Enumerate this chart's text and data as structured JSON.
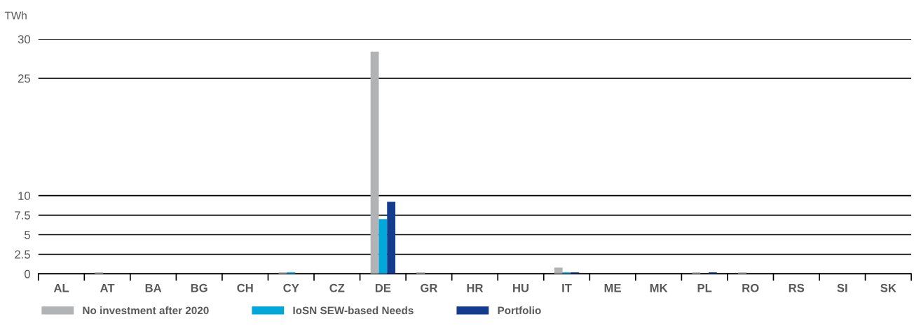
{
  "chart_data": {
    "type": "bar",
    "ylabel": "TWh",
    "categories": [
      "AL",
      "AT",
      "BA",
      "BG",
      "CH",
      "CY",
      "CZ",
      "DE",
      "GR",
      "HR",
      "HU",
      "IT",
      "ME",
      "MK",
      "PL",
      "RO",
      "RS",
      "SI",
      "SK"
    ],
    "series": [
      {
        "name": "No investment after 2020",
        "color": "#b2b3b5",
        "values": [
          0,
          0.2,
          0,
          0,
          0,
          0.2,
          0,
          28.4,
          0.2,
          0,
          0,
          0.8,
          0,
          0,
          0.2,
          0.2,
          0,
          0,
          0
        ]
      },
      {
        "name": "IoSN SEW-based Needs",
        "color": "#00a8d9",
        "values": [
          0,
          0,
          0,
          0,
          0,
          0.2,
          0,
          7.0,
          0,
          0,
          0,
          0.2,
          0,
          0,
          0,
          0,
          0,
          0,
          0
        ]
      },
      {
        "name": "Portfolio",
        "color": "#133c8f",
        "values": [
          0,
          0,
          0,
          0,
          0,
          0,
          0,
          9.2,
          0,
          0,
          0,
          0.2,
          0,
          0,
          0.2,
          0,
          0,
          0,
          0
        ]
      }
    ],
    "ylim": [
      0,
      30
    ],
    "yticks": [
      0,
      2.5,
      5,
      7.5,
      10,
      25,
      30
    ],
    "grid": "y",
    "legend": "bottom left"
  }
}
